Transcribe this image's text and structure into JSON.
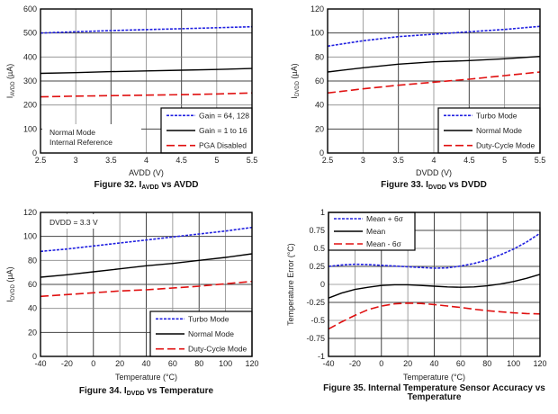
{
  "chart_data": [
    {
      "id": "fig32",
      "type": "line",
      "caption": {
        "prefix": "Figure 32. I",
        "sub": "AVDD",
        "suffix": " vs AVDD"
      },
      "xlabel": "AVDD (V)",
      "ylabel": {
        "main": "I",
        "sub": "AVDD",
        "unit": " (µA)"
      },
      "xlim": [
        2.5,
        5.5
      ],
      "ylim": [
        0,
        600
      ],
      "xticks": [
        "2.5",
        "3",
        "3.5",
        "4",
        "4.5",
        "5",
        "5.5"
      ],
      "yticks": [
        "0",
        "100",
        "200",
        "300",
        "400",
        "500",
        "600"
      ],
      "grid": true,
      "legend_position": "bottom-right",
      "annotation": [
        "Normal Mode",
        "Internal Reference"
      ],
      "annotation_position": "bottom-left",
      "series": [
        {
          "name": "Gain = 64, 128",
          "style": "dotted",
          "color": "#2020e0",
          "x": [
            2.5,
            3,
            3.5,
            4,
            4.5,
            5,
            5.5
          ],
          "y": [
            500,
            505,
            510,
            514,
            518,
            522,
            526
          ]
        },
        {
          "name": "Gain = 1 to 16",
          "style": "solid",
          "color": "#000000",
          "x": [
            2.5,
            3,
            3.5,
            4,
            4.5,
            5,
            5.5
          ],
          "y": [
            332,
            335,
            339,
            342,
            345,
            348,
            352
          ]
        },
        {
          "name": "PGA Disabled",
          "style": "dashed",
          "color": "#e01010",
          "x": [
            2.5,
            3,
            3.5,
            4,
            4.5,
            5,
            5.5
          ],
          "y": [
            234,
            237,
            239,
            241,
            243,
            246,
            250
          ]
        }
      ]
    },
    {
      "id": "fig33",
      "type": "line",
      "caption": {
        "prefix": "Figure 33. I",
        "sub": "DVDD",
        "suffix": " vs DVDD"
      },
      "xlabel": "DVDD (V)",
      "ylabel": {
        "main": "I",
        "sub": "DVDD",
        "unit": " (µA)"
      },
      "xlim": [
        2.5,
        5.5
      ],
      "ylim": [
        0,
        120
      ],
      "xticks": [
        "2.5",
        "3",
        "3.5",
        "4",
        "4.5",
        "5",
        "5.5"
      ],
      "yticks": [
        "0",
        "20",
        "40",
        "60",
        "80",
        "100",
        "120"
      ],
      "grid": true,
      "legend_position": "bottom-right",
      "series": [
        {
          "name": "Turbo Mode",
          "style": "dotted",
          "color": "#2020e0",
          "x": [
            2.5,
            3,
            3.5,
            4,
            4.5,
            5,
            5.5
          ],
          "y": [
            89,
            93.5,
            97,
            99,
            101,
            103,
            105.5
          ]
        },
        {
          "name": "Normal Mode",
          "style": "solid",
          "color": "#000000",
          "x": [
            2.5,
            3,
            3.5,
            4,
            4.5,
            5,
            5.5
          ],
          "y": [
            67.5,
            71,
            74,
            76,
            77,
            78.5,
            80.5
          ]
        },
        {
          "name": "Duty-Cycle Mode",
          "style": "dashed",
          "color": "#e01010",
          "x": [
            2.5,
            3,
            3.5,
            4,
            4.5,
            5,
            5.5
          ],
          "y": [
            50,
            53.5,
            56.5,
            59,
            61.5,
            64.5,
            67.5
          ]
        }
      ]
    },
    {
      "id": "fig34",
      "type": "line",
      "caption": {
        "prefix": "Figure 34. I",
        "sub": "DVDD",
        "suffix": " vs Temperature"
      },
      "xlabel": "Temperature (°C)",
      "ylabel": {
        "main": "I",
        "sub": "DVDD",
        "unit": " (µA)"
      },
      "xlim": [
        -40,
        120
      ],
      "ylim": [
        0,
        120
      ],
      "xticks": [
        "-40",
        "-20",
        "0",
        "20",
        "40",
        "60",
        "80",
        "100",
        "120"
      ],
      "yticks": [
        "0",
        "20",
        "40",
        "60",
        "80",
        "100",
        "120"
      ],
      "grid": true,
      "legend_position": "bottom-right",
      "annotation": [
        "DVDD = 3.3 V"
      ],
      "annotation_position": "top-left",
      "series": [
        {
          "name": "Turbo Mode",
          "style": "dotted",
          "color": "#2020e0",
          "x": [
            -40,
            -20,
            0,
            20,
            40,
            60,
            80,
            100,
            120
          ],
          "y": [
            87.5,
            89.5,
            92,
            94.5,
            97,
            99.5,
            102,
            104.5,
            107.5
          ]
        },
        {
          "name": "Normal Mode",
          "style": "solid",
          "color": "#000000",
          "x": [
            -40,
            -20,
            0,
            20,
            40,
            60,
            80,
            100,
            120
          ],
          "y": [
            66,
            68,
            70.5,
            73,
            75.5,
            77.5,
            80,
            82.5,
            85.5
          ]
        },
        {
          "name": "Duty-Cycle Mode",
          "style": "dashed",
          "color": "#e01010",
          "x": [
            -40,
            -20,
            0,
            20,
            40,
            60,
            80,
            100,
            120
          ],
          "y": [
            50,
            51.5,
            53,
            54.5,
            55.5,
            57,
            58.5,
            60.5,
            62.5
          ]
        }
      ]
    },
    {
      "id": "fig35",
      "type": "line",
      "caption": {
        "line1": "Figure 35. Internal Temperature Sensor Accuracy vs",
        "line2": "Temperature"
      },
      "xlabel": "Temperature (°C)",
      "ylabel": {
        "main": "Temperature Error (°C)"
      },
      "xlim": [
        -40,
        120
      ],
      "ylim": [
        -1,
        1
      ],
      "xticks": [
        "-40",
        "-20",
        "0",
        "20",
        "40",
        "60",
        "80",
        "100",
        "120"
      ],
      "yticks": [
        "-1",
        "-0.75",
        "-0.5",
        "-0.25",
        "0",
        "0.25",
        "0.5",
        "0.75",
        "1"
      ],
      "grid": true,
      "legend_position": "top-left",
      "series": [
        {
          "name": "Mean + 6σ",
          "style": "dotted",
          "color": "#2020e0",
          "x": [
            -40,
            -30,
            -20,
            -10,
            0,
            10,
            20,
            30,
            40,
            50,
            60,
            70,
            80,
            90,
            100,
            110,
            120
          ],
          "y": [
            0.25,
            0.27,
            0.28,
            0.275,
            0.265,
            0.255,
            0.245,
            0.235,
            0.225,
            0.23,
            0.255,
            0.29,
            0.34,
            0.41,
            0.49,
            0.59,
            0.71
          ]
        },
        {
          "name": "Mean",
          "style": "solid",
          "color": "#000000",
          "x": [
            -40,
            -30,
            -20,
            -10,
            0,
            10,
            20,
            30,
            40,
            50,
            60,
            70,
            80,
            90,
            100,
            110,
            120
          ],
          "y": [
            -0.19,
            -0.12,
            -0.07,
            -0.04,
            -0.015,
            -0.005,
            -0.005,
            -0.015,
            -0.025,
            -0.035,
            -0.04,
            -0.035,
            -0.02,
            0.005,
            0.04,
            0.085,
            0.14
          ]
        },
        {
          "name": "Mean - 6σ",
          "style": "dashed",
          "color": "#e01010",
          "x": [
            -40,
            -30,
            -20,
            -10,
            0,
            10,
            20,
            30,
            40,
            50,
            60,
            70,
            80,
            90,
            100,
            110,
            120
          ],
          "y": [
            -0.62,
            -0.52,
            -0.43,
            -0.35,
            -0.3,
            -0.27,
            -0.26,
            -0.265,
            -0.28,
            -0.3,
            -0.32,
            -0.345,
            -0.365,
            -0.38,
            -0.395,
            -0.405,
            -0.41
          ]
        }
      ]
    }
  ]
}
